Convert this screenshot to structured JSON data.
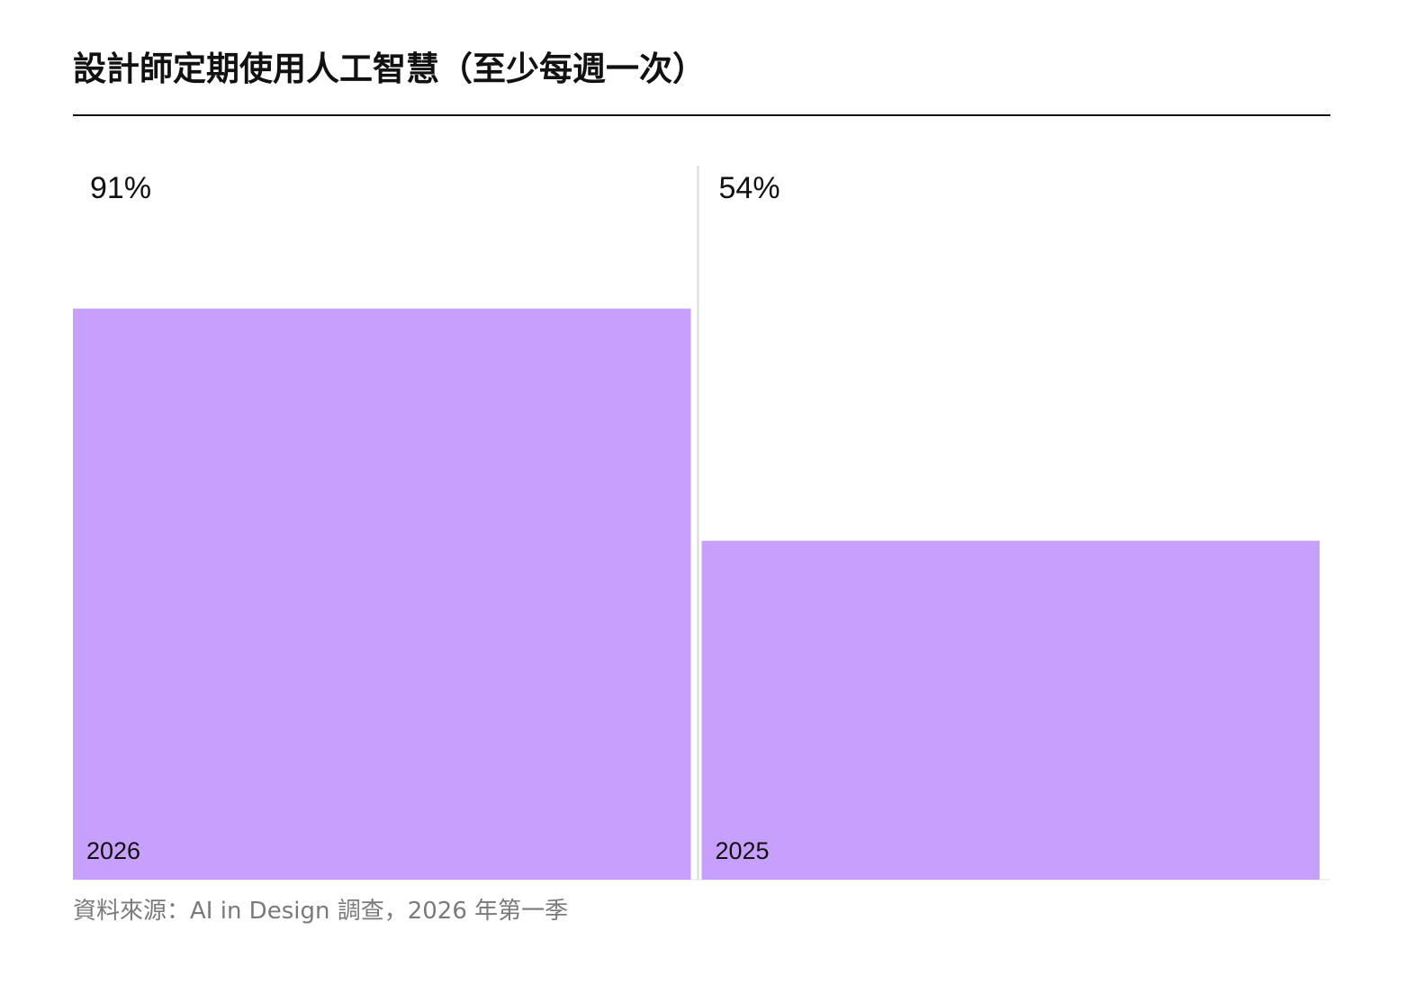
{
  "chart_data": {
    "type": "bar",
    "title": "設計師定期使用人工智慧（至少每週一次）",
    "categories": [
      "2026",
      "2025"
    ],
    "series": [
      {
        "values": [
          91,
          54
        ],
        "value_labels": [
          "91%",
          "54%"
        ]
      }
    ],
    "ylim": [
      0,
      100
    ],
    "unit": "%",
    "bar_color": "#c7a0fd",
    "source": "資料來源：AI in Design 調查，2026 年第一季",
    "grid": false,
    "legend": "none"
  }
}
